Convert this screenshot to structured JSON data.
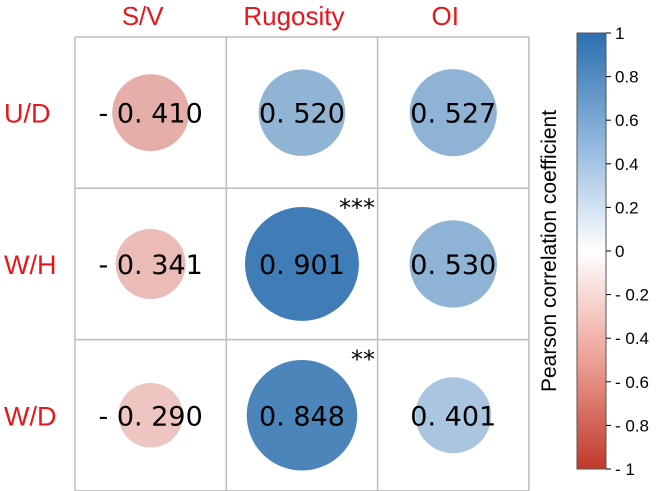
{
  "chart_data": {
    "type": "heatmap",
    "columns": [
      "S/V",
      "Rugosity",
      "OI"
    ],
    "rows": [
      "U/D",
      "W/H",
      "W/D"
    ],
    "cells": [
      [
        {
          "value": -0.41,
          "label": "- 0. 410",
          "significance": ""
        },
        {
          "value": 0.52,
          "label": "0. 520",
          "significance": ""
        },
        {
          "value": 0.527,
          "label": "0. 527",
          "significance": ""
        }
      ],
      [
        {
          "value": -0.341,
          "label": "- 0. 341",
          "significance": ""
        },
        {
          "value": 0.901,
          "label": "0. 901",
          "significance": "***"
        },
        {
          "value": 0.53,
          "label": "0. 530",
          "significance": ""
        }
      ],
      [
        {
          "value": -0.29,
          "label": "- 0. 290",
          "significance": ""
        },
        {
          "value": 0.848,
          "label": "0. 848",
          "significance": "**"
        },
        {
          "value": 0.401,
          "label": "0. 401",
          "significance": ""
        }
      ]
    ],
    "colorbar": {
      "title": "Pearson correlation coefficient",
      "range": [
        -1,
        1
      ],
      "ticks": [
        "1",
        "0.8",
        "0.6",
        "0.4",
        "0.2",
        "0",
        "- 0.2",
        "- 0.4",
        "- 0.6",
        "- 0.8",
        "- 1"
      ],
      "colors": {
        "negative": "#c0392b",
        "neutral": "#ffffff",
        "positive": "#2b6fae"
      }
    },
    "label_color": "#e8161b",
    "grid_color": "#bdbdbd"
  }
}
